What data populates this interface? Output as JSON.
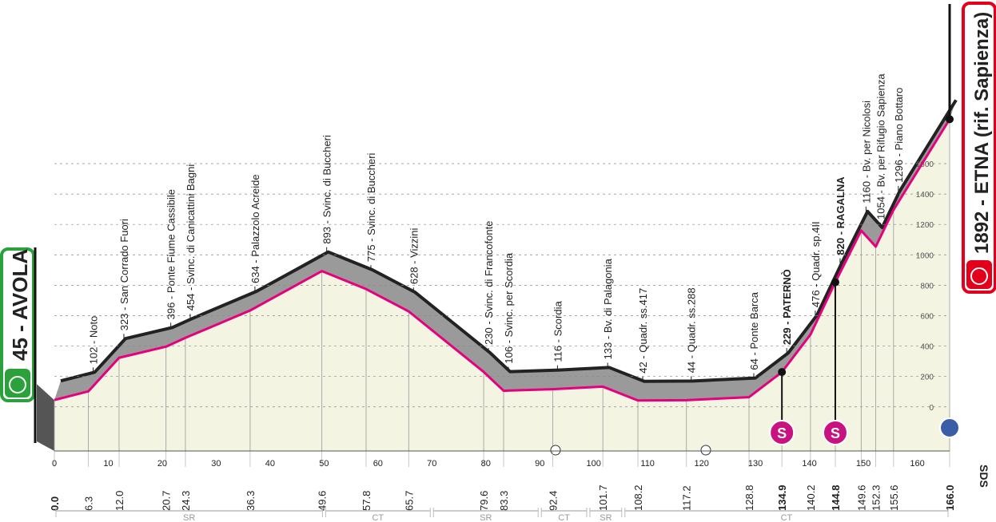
{
  "chart_data": {
    "type": "area",
    "x": [
      0.0,
      6.3,
      12.0,
      20.7,
      24.3,
      36.3,
      49.6,
      57.8,
      65.7,
      79.6,
      83.3,
      92.4,
      101.7,
      108.2,
      117.2,
      128.8,
      134.9,
      140.2,
      144.8,
      149.6,
      152.3,
      155.6,
      166.0
    ],
    "x_labels": [
      "0.0",
      "6.3",
      "12.0",
      "20.7",
      "24.3",
      "36.3",
      "49.6",
      "57.8",
      "65.7",
      "79.6",
      "83.3",
      "92.4",
      "101.7",
      "108.2",
      "117.2",
      "128.8",
      "134.9",
      "140.2",
      "144.8",
      "149.6",
      "152.3",
      "155.6",
      "166.0"
    ],
    "values": [
      45,
      102,
      323,
      396,
      454,
      634,
      893,
      775,
      628,
      230,
      106,
      116,
      133,
      42,
      44,
      64,
      229,
      476,
      820,
      1160,
      1054,
      1296,
      1892
    ],
    "value_labels": [
      "45 - AVOLA",
      "102 - Noto",
      "323 - San Corrado Fuori",
      "396 - Ponte Fiume Cassibile",
      "454 - Svinc. di Canicattini Bagni",
      "634 - Palazzolo Acreide",
      "893 - Svinc. di Buccheri",
      "775 - Svinc. di Buccheri",
      "628 - Vizzini",
      "230 - Svinc. di Francofonte",
      "106 - Svinc. per Scordia",
      "116 - Scordia",
      "133 - Bv. di Palagonia",
      "42 - Quadr. ss.417",
      "44 - Quadr. ss.288",
      "64 - Ponte Barca",
      "229 - PATERNÒ",
      "476 - Quadr. sp.4II",
      "820 - RAGALNA",
      "1160 - Bv. per Nicolosi",
      "1054 - Bv. per Rifugio Sapienza",
      "1296 - Piano Bottaro",
      "1892 - ETNA (rif. Sapienza)"
    ],
    "xlim": [
      0,
      166
    ],
    "xticks": [
      0,
      10,
      20,
      30,
      40,
      50,
      60,
      70,
      80,
      90,
      100,
      110,
      120,
      130,
      140,
      150,
      160
    ],
    "ylim": [
      -290,
      2650
    ],
    "yticks": [
      0,
      200,
      400,
      600,
      800,
      1000,
      1200,
      1400,
      1600
    ],
    "grid": true,
    "color": "#e6007e",
    "sprints": [
      134.9,
      144.8
    ],
    "sprint_label": "S",
    "finish_label": "SDS",
    "provinces": [
      {
        "name": "SR",
        "from": 0,
        "to": 50
      },
      {
        "name": "CT",
        "from": 50,
        "to": 70
      },
      {
        "name": "SR",
        "from": 70,
        "to": 90
      },
      {
        "name": "CT",
        "from": 90,
        "to": 99
      },
      {
        "name": "SR",
        "from": 99,
        "to": 105.5
      },
      {
        "name": "CT",
        "from": 105.5,
        "to": 166
      }
    ]
  }
}
